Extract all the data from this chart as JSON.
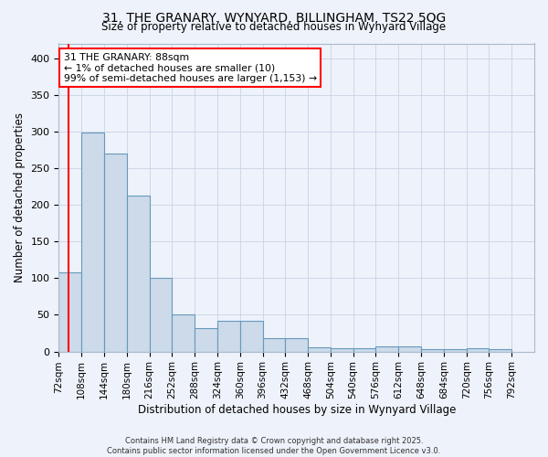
{
  "title1": "31, THE GRANARY, WYNYARD, BILLINGHAM, TS22 5QG",
  "title2": "Size of property relative to detached houses in Wynyard Village",
  "xlabel": "Distribution of detached houses by size in Wynyard Village",
  "ylabel": "Number of detached properties",
  "bar_color": "#ccdaea",
  "bar_edge_color": "#6699bb",
  "bin_edges": [
    72,
    108,
    144,
    180,
    216,
    252,
    288,
    324,
    360,
    396,
    432,
    468,
    504,
    540,
    576,
    612,
    648,
    684,
    720,
    756,
    792
  ],
  "values": [
    108,
    298,
    270,
    213,
    100,
    50,
    32,
    42,
    42,
    18,
    18,
    6,
    5,
    5,
    7,
    7,
    3,
    3,
    4,
    3
  ],
  "bin_width": 36,
  "red_line_x": 88,
  "ylim": [
    0,
    420
  ],
  "yticks": [
    0,
    50,
    100,
    150,
    200,
    250,
    300,
    350,
    400
  ],
  "annotation_text": "31 THE GRANARY: 88sqm\n← 1% of detached houses are smaller (10)\n99% of semi-detached houses are larger (1,153) →",
  "footer": "Contains HM Land Registry data © Crown copyright and database right 2025.\nContains public sector information licensed under the Open Government Licence v3.0.",
  "bg_color": "#eef2fa",
  "grid_color": "#c8d4e4"
}
